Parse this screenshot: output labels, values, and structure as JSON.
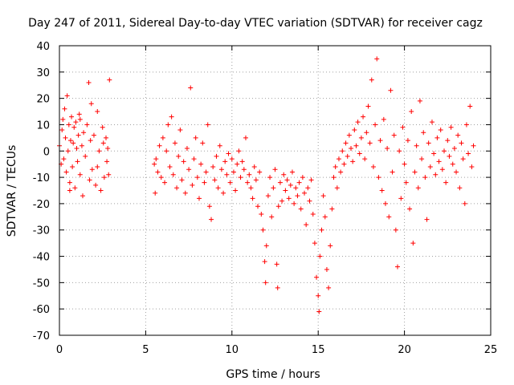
{
  "chart_data": {
    "type": "scatter",
    "title": "Day 247 of 2011, Sidereal Day-to-day VTEC variation (SDTVAR) for receiver cagz",
    "xlabel": "GPS time / hours",
    "ylabel": "SDTVAR / TECUs",
    "xlim": [
      0,
      25
    ],
    "ylim": [
      -70,
      40
    ],
    "xticks": [
      0,
      5,
      10,
      15,
      20,
      25
    ],
    "yticks": [
      40,
      30,
      20,
      10,
      0,
      -10,
      -20,
      -30,
      -40,
      -50,
      -60,
      -70
    ],
    "grid": true,
    "marker": "+",
    "color": "#ff0000",
    "series": [
      {
        "name": "SDTVAR",
        "points": [
          [
            0.0,
            2
          ],
          [
            0.1,
            -5
          ],
          [
            0.15,
            8
          ],
          [
            0.2,
            12
          ],
          [
            0.25,
            -3
          ],
          [
            0.3,
            16
          ],
          [
            0.35,
            5
          ],
          [
            0.4,
            -8
          ],
          [
            0.45,
            21
          ],
          [
            0.5,
            0
          ],
          [
            0.55,
            10
          ],
          [
            0.6,
            -12
          ],
          [
            0.65,
            4
          ],
          [
            0.7,
            13
          ],
          [
            0.75,
            -6
          ],
          [
            0.8,
            3
          ],
          [
            0.85,
            9
          ],
          [
            0.9,
            -14
          ],
          [
            0.95,
            11
          ],
          [
            1.0,
            1
          ],
          [
            1.05,
            -4
          ],
          [
            1.1,
            6
          ],
          [
            1.15,
            14
          ],
          [
            1.2,
            -9
          ],
          [
            1.3,
            2
          ],
          [
            1.35,
            -17
          ],
          [
            1.4,
            7
          ],
          [
            1.5,
            -2
          ],
          [
            1.6,
            10
          ],
          [
            1.7,
            26
          ],
          [
            1.75,
            -11
          ],
          [
            1.8,
            4
          ],
          [
            1.85,
            18
          ],
          [
            1.9,
            -7
          ],
          [
            2.0,
            6
          ],
          [
            2.1,
            -13
          ],
          [
            2.2,
            15
          ],
          [
            2.3,
            0
          ],
          [
            2.4,
            -15
          ],
          [
            2.5,
            9
          ],
          [
            2.55,
            3
          ],
          [
            2.6,
            -10
          ],
          [
            2.7,
            5
          ],
          [
            2.75,
            -4
          ],
          [
            2.8,
            1
          ],
          [
            2.85,
            -9
          ],
          [
            2.9,
            27
          ],
          [
            0.6,
            -15
          ],
          [
            1.2,
            12
          ],
          [
            2.2,
            -6
          ],
          [
            5.5,
            -5
          ],
          [
            5.55,
            -16
          ],
          [
            5.6,
            -3
          ],
          [
            5.7,
            -8
          ],
          [
            5.8,
            2
          ],
          [
            5.9,
            -10
          ],
          [
            6.0,
            5
          ],
          [
            6.1,
            -12
          ],
          [
            6.2,
            0
          ],
          [
            6.3,
            10
          ],
          [
            6.4,
            -6
          ],
          [
            6.5,
            13
          ],
          [
            6.6,
            -9
          ],
          [
            6.7,
            3
          ],
          [
            6.8,
            -14
          ],
          [
            6.9,
            -2
          ],
          [
            7.0,
            8
          ],
          [
            7.1,
            -11
          ],
          [
            7.2,
            -4
          ],
          [
            7.3,
            -16
          ],
          [
            7.4,
            1
          ],
          [
            7.5,
            -7
          ],
          [
            7.6,
            24
          ],
          [
            7.7,
            -13
          ],
          [
            7.8,
            -3
          ],
          [
            7.9,
            5
          ],
          [
            8.0,
            -10
          ],
          [
            8.1,
            -18
          ],
          [
            8.2,
            -5
          ],
          [
            8.3,
            3
          ],
          [
            8.4,
            -12
          ],
          [
            8.5,
            -8
          ],
          [
            8.6,
            10
          ],
          [
            8.7,
            -21
          ],
          [
            8.8,
            -26
          ],
          [
            8.9,
            -6
          ],
          [
            9.0,
            -11
          ],
          [
            9.1,
            -2
          ],
          [
            9.2,
            -14
          ],
          [
            9.3,
            2
          ],
          [
            9.4,
            -7
          ],
          [
            9.5,
            -16
          ],
          [
            9.6,
            -4
          ],
          [
            9.7,
            -9
          ],
          [
            9.8,
            -1
          ],
          [
            9.9,
            -12
          ],
          [
            10.0,
            -3
          ],
          [
            10.1,
            -8
          ],
          [
            10.2,
            -15
          ],
          [
            10.3,
            -5
          ],
          [
            10.4,
            0
          ],
          [
            10.5,
            -10
          ],
          [
            10.6,
            -4
          ],
          [
            10.7,
            -7
          ],
          [
            10.8,
            5
          ],
          [
            10.9,
            -12
          ],
          [
            11.0,
            -9
          ],
          [
            11.1,
            -14
          ],
          [
            11.2,
            -18
          ],
          [
            11.3,
            -6
          ],
          [
            11.4,
            -11
          ],
          [
            11.5,
            -21
          ],
          [
            11.6,
            -8
          ],
          [
            11.7,
            -24
          ],
          [
            11.8,
            -30
          ],
          [
            11.9,
            -42
          ],
          [
            11.95,
            -50
          ],
          [
            12.0,
            -36
          ],
          [
            12.1,
            -17
          ],
          [
            12.2,
            -10
          ],
          [
            12.3,
            -25
          ],
          [
            12.4,
            -14
          ],
          [
            12.5,
            -7
          ],
          [
            12.6,
            -43
          ],
          [
            12.65,
            -52
          ],
          [
            12.7,
            -21
          ],
          [
            12.8,
            -12
          ],
          [
            12.9,
            -19
          ],
          [
            13.0,
            -9
          ],
          [
            13.1,
            -15
          ],
          [
            13.2,
            -11
          ],
          [
            13.3,
            -18
          ],
          [
            13.4,
            -13
          ],
          [
            13.5,
            -8
          ],
          [
            13.6,
            -20
          ],
          [
            13.7,
            -14
          ],
          [
            13.8,
            -17
          ],
          [
            13.9,
            -12
          ],
          [
            14.0,
            -22
          ],
          [
            14.1,
            -10
          ],
          [
            14.2,
            -16
          ],
          [
            14.3,
            -28
          ],
          [
            14.4,
            -14
          ],
          [
            14.5,
            -19
          ],
          [
            14.6,
            -11
          ],
          [
            14.7,
            -24
          ],
          [
            14.8,
            -35
          ],
          [
            14.9,
            -48
          ],
          [
            15.0,
            -55
          ],
          [
            15.05,
            -61
          ],
          [
            15.1,
            -40
          ],
          [
            15.2,
            -30
          ],
          [
            15.3,
            -17
          ],
          [
            15.4,
            -25
          ],
          [
            15.5,
            -45
          ],
          [
            15.6,
            -52
          ],
          [
            15.7,
            -36
          ],
          [
            15.8,
            -22
          ],
          [
            15.9,
            -10
          ],
          [
            16.0,
            -6
          ],
          [
            16.1,
            -14
          ],
          [
            16.2,
            -3
          ],
          [
            16.3,
            -8
          ],
          [
            16.4,
            0
          ],
          [
            16.5,
            -5
          ],
          [
            16.6,
            3
          ],
          [
            16.7,
            -2
          ],
          [
            16.8,
            6
          ],
          [
            16.9,
            1
          ],
          [
            17.0,
            -4
          ],
          [
            17.1,
            8
          ],
          [
            17.2,
            2
          ],
          [
            17.3,
            11
          ],
          [
            17.4,
            -1
          ],
          [
            17.5,
            5
          ],
          [
            17.6,
            13
          ],
          [
            17.7,
            -3
          ],
          [
            17.8,
            7
          ],
          [
            17.9,
            17
          ],
          [
            18.0,
            3
          ],
          [
            18.1,
            27
          ],
          [
            18.2,
            -6
          ],
          [
            18.3,
            10
          ],
          [
            18.4,
            35
          ],
          [
            18.5,
            -10
          ],
          [
            18.6,
            4
          ],
          [
            18.7,
            -15
          ],
          [
            18.8,
            12
          ],
          [
            18.9,
            -20
          ],
          [
            19.0,
            1
          ],
          [
            19.1,
            -25
          ],
          [
            19.2,
            23
          ],
          [
            19.3,
            -8
          ],
          [
            19.4,
            6
          ],
          [
            19.5,
            -30
          ],
          [
            19.6,
            -44
          ],
          [
            19.7,
            0
          ],
          [
            19.8,
            -18
          ],
          [
            19.9,
            9
          ],
          [
            20.0,
            -5
          ],
          [
            20.1,
            -12
          ],
          [
            20.2,
            4
          ],
          [
            20.3,
            -22
          ],
          [
            20.4,
            15
          ],
          [
            20.5,
            -35
          ],
          [
            20.6,
            -8
          ],
          [
            20.7,
            2
          ],
          [
            20.8,
            -14
          ],
          [
            20.9,
            19
          ],
          [
            21.0,
            -3
          ],
          [
            21.1,
            7
          ],
          [
            21.2,
            -10
          ],
          [
            21.3,
            -26
          ],
          [
            21.4,
            3
          ],
          [
            21.5,
            -6
          ],
          [
            21.6,
            11
          ],
          [
            21.7,
            -1
          ],
          [
            21.8,
            -9
          ],
          [
            21.9,
            5
          ],
          [
            22.0,
            -4
          ],
          [
            22.1,
            8
          ],
          [
            22.2,
            -7
          ],
          [
            22.3,
            0
          ],
          [
            22.4,
            -12
          ],
          [
            22.5,
            4
          ],
          [
            22.6,
            -2
          ],
          [
            22.7,
            9
          ],
          [
            22.8,
            -5
          ],
          [
            22.9,
            1
          ],
          [
            23.0,
            -8
          ],
          [
            23.1,
            6
          ],
          [
            23.2,
            -14
          ],
          [
            23.3,
            3
          ],
          [
            23.4,
            -3
          ],
          [
            23.5,
            -20
          ],
          [
            23.6,
            10
          ],
          [
            23.7,
            -1
          ],
          [
            23.8,
            17
          ],
          [
            23.9,
            -6
          ],
          [
            24.0,
            2
          ]
        ]
      }
    ]
  }
}
